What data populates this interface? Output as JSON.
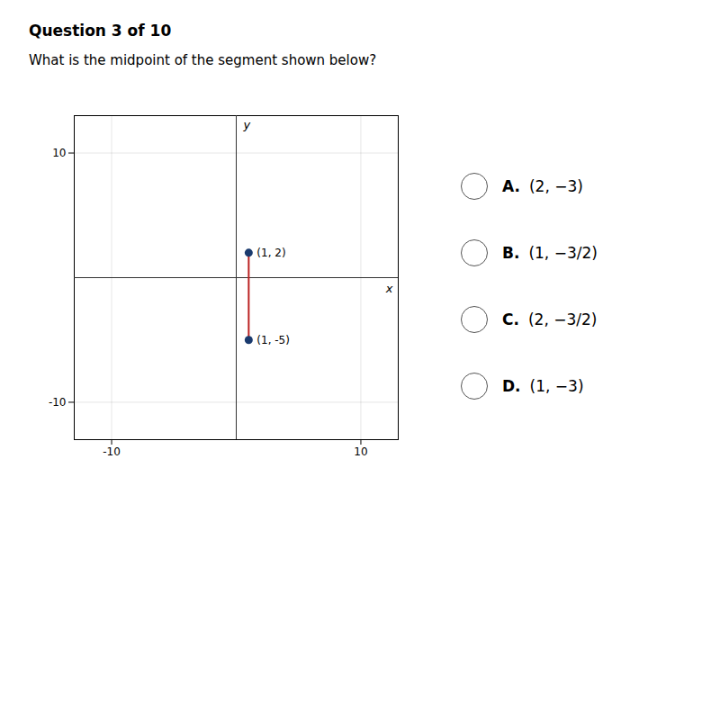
{
  "chart_data": {
    "type": "line",
    "title": "Question 3 of 10",
    "subtitle": "What is the midpoint of the segment shown below?",
    "x": [
      1,
      1
    ],
    "values": [
      2,
      -5
    ],
    "color": "#bb2222",
    "marker": "circle",
    "colors": [
      "#1a3a6e",
      "#1a3a6e"
    ],
    "data_labels": true,
    "value_labels": [
      "(1, 2)",
      "(1, -5)"
    ],
    "x_label": "x",
    "y_label": "y",
    "xlim": [
      -13,
      13
    ],
    "ylim": [
      -13,
      13
    ],
    "xticks": [
      -10,
      10
    ],
    "yticks": [
      -10,
      10
    ],
    "grid": true,
    "annotations": [
      "A. (2, −3)",
      "B. (1, −3/2)",
      "C. (2, −3/2)",
      "D. (1, −3)"
    ]
  }
}
